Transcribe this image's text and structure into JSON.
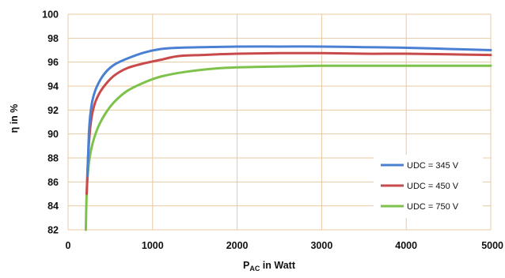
{
  "chart_data": {
    "type": "line",
    "title": "",
    "xlabel": "P_AC in Watt",
    "xlabel_main": "P",
    "xlabel_sub": "AC",
    "xlabel_rest": " in Watt",
    "ylabel": "η in %",
    "xlim": [
      0,
      5000
    ],
    "ylim": [
      82,
      100
    ],
    "xticks": [
      0,
      1000,
      2000,
      3000,
      4000,
      5000
    ],
    "yticks": [
      82,
      84,
      86,
      88,
      90,
      92,
      94,
      96,
      98,
      100
    ],
    "grid": true,
    "legend_position": "bottom-right",
    "series": [
      {
        "name": "UDC = 345 V",
        "color": "#4a7fd4",
        "x": [
          230,
          250,
          280,
          320,
          380,
          450,
          550,
          700,
          900,
          1100,
          1300,
          1600,
          2000,
          2500,
          3000,
          3500,
          4000,
          4500,
          5000
        ],
        "y": [
          86.5,
          90.5,
          92.5,
          93.6,
          94.5,
          95.2,
          95.8,
          96.3,
          96.8,
          97.1,
          97.2,
          97.25,
          97.3,
          97.3,
          97.3,
          97.25,
          97.2,
          97.1,
          97.0
        ]
      },
      {
        "name": "UDC = 450 V",
        "color": "#c94a4a",
        "x": [
          220,
          240,
          270,
          310,
          370,
          450,
          550,
          700,
          900,
          1100,
          1300,
          1600,
          2000,
          2500,
          3000,
          3500,
          4000,
          4500,
          5000
        ],
        "y": [
          85.0,
          88.5,
          91.0,
          92.4,
          93.4,
          94.2,
          94.9,
          95.5,
          95.9,
          96.2,
          96.5,
          96.6,
          96.7,
          96.75,
          96.75,
          96.7,
          96.7,
          96.65,
          96.6
        ]
      },
      {
        "name": "UDC = 750 V",
        "color": "#7dc24a",
        "x": [
          210,
          220,
          240,
          270,
          310,
          370,
          450,
          550,
          700,
          900,
          1100,
          1400,
          1800,
          2200,
          2600,
          3000,
          3500,
          4000,
          4500,
          5000
        ],
        "y": [
          82.0,
          85.0,
          87.2,
          88.6,
          89.7,
          90.8,
          91.8,
          92.7,
          93.6,
          94.3,
          94.8,
          95.2,
          95.5,
          95.6,
          95.65,
          95.7,
          95.7,
          95.7,
          95.7,
          95.7
        ]
      }
    ]
  }
}
